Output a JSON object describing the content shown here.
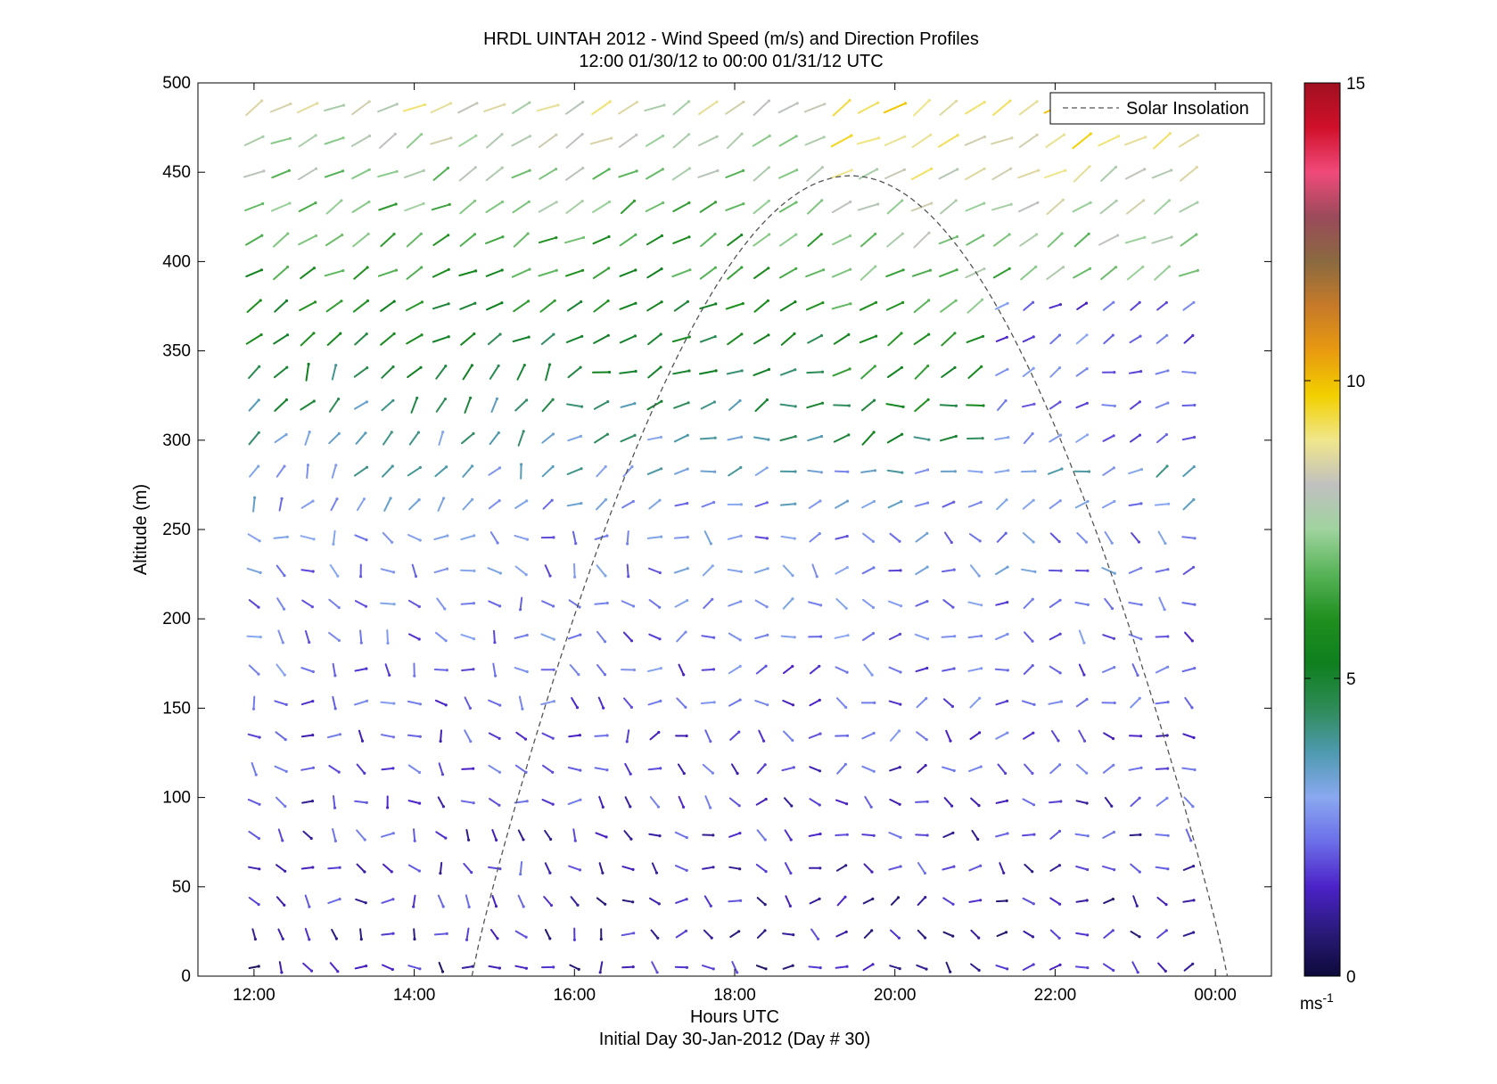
{
  "chart_data": {
    "type": "wind barb profile (quiver)",
    "title_line1": "HRDL UINTAH 2012 - Wind Speed (m/s) and Direction Profiles",
    "title_line2": "12:00 01/30/12 to 00:00 01/31/12  UTC",
    "xlabel": "Hours UTC",
    "xlabel2": "Initial Day 30-Jan-2012 (Day # 30)",
    "ylabel": "Altitude (m)",
    "x_ticks": [
      "12:00",
      "14:00",
      "16:00",
      "18:00",
      "20:00",
      "22:00",
      "00:00"
    ],
    "y_ticks": [
      "0",
      "50",
      "100",
      "150",
      "200",
      "250",
      "300",
      "350",
      "400",
      "450",
      "500"
    ],
    "xlim_hours": [
      11.3,
      24.7
    ],
    "ylim": [
      0,
      500
    ],
    "grid": false,
    "legend": {
      "entries": [
        "Solar Insolation"
      ],
      "location": "top-right"
    },
    "solar_insolation": {
      "style": "dashed",
      "start_hour": 14.72,
      "peak_hour": 19.45,
      "peak_altitude_equiv": 448,
      "end_hour": 24.15
    },
    "colorbar": {
      "min": 0,
      "max": 15,
      "ticks": [
        "0",
        "5",
        "10",
        "15"
      ],
      "unit_label": "ms",
      "unit_exponent": "-1",
      "colors": [
        "#0d0a3a",
        "#2a1a7a",
        "#4b22c8",
        "#6b6ee8",
        "#8aa8f0",
        "#4f9ab0",
        "#2e8b57",
        "#0f7f1f",
        "#1f8f1f",
        "#57b357",
        "#9fd39f",
        "#c0c0c0",
        "#f0e68c",
        "#f2d000",
        "#e89a10",
        "#c77a28",
        "#8a6a40",
        "#9a4a5a",
        "#f04a7a",
        "#d0102a",
        "#a01020"
      ]
    },
    "wind_samples_description": "Profiles every ~20 min from 12:00 to 23:55, heights every ~18 m from 5 to 490 m"
  }
}
